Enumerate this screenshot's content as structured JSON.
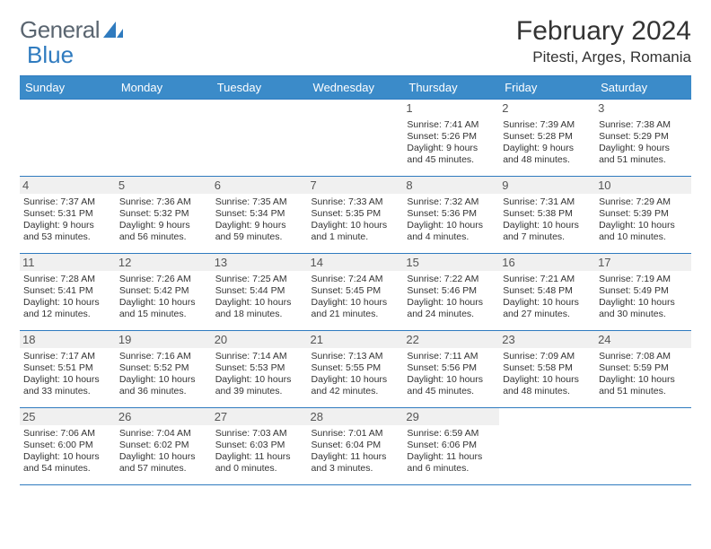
{
  "brand": {
    "part1": "General",
    "part2": "Blue"
  },
  "title": "February 2024",
  "location": "Pitesti, Arges, Romania",
  "colors": {
    "header_bg": "#3b8bc9",
    "border": "#2f7bbf",
    "shade": "#f0f0f0"
  },
  "weekdays": [
    "Sunday",
    "Monday",
    "Tuesday",
    "Wednesday",
    "Thursday",
    "Friday",
    "Saturday"
  ],
  "weeks": [
    [
      {
        "empty": true
      },
      {
        "empty": true
      },
      {
        "empty": true
      },
      {
        "empty": true
      },
      {
        "day": "1",
        "sunrise": "7:41 AM",
        "sunset": "5:26 PM",
        "daylight": "9 hours and 45 minutes."
      },
      {
        "day": "2",
        "sunrise": "7:39 AM",
        "sunset": "5:28 PM",
        "daylight": "9 hours and 48 minutes."
      },
      {
        "day": "3",
        "sunrise": "7:38 AM",
        "sunset": "5:29 PM",
        "daylight": "9 hours and 51 minutes."
      }
    ],
    [
      {
        "day": "4",
        "sunrise": "7:37 AM",
        "sunset": "5:31 PM",
        "daylight": "9 hours and 53 minutes."
      },
      {
        "day": "5",
        "sunrise": "7:36 AM",
        "sunset": "5:32 PM",
        "daylight": "9 hours and 56 minutes."
      },
      {
        "day": "6",
        "sunrise": "7:35 AM",
        "sunset": "5:34 PM",
        "daylight": "9 hours and 59 minutes."
      },
      {
        "day": "7",
        "sunrise": "7:33 AM",
        "sunset": "5:35 PM",
        "daylight": "10 hours and 1 minute."
      },
      {
        "day": "8",
        "sunrise": "7:32 AM",
        "sunset": "5:36 PM",
        "daylight": "10 hours and 4 minutes."
      },
      {
        "day": "9",
        "sunrise": "7:31 AM",
        "sunset": "5:38 PM",
        "daylight": "10 hours and 7 minutes."
      },
      {
        "day": "10",
        "sunrise": "7:29 AM",
        "sunset": "5:39 PM",
        "daylight": "10 hours and 10 minutes."
      }
    ],
    [
      {
        "day": "11",
        "sunrise": "7:28 AM",
        "sunset": "5:41 PM",
        "daylight": "10 hours and 12 minutes."
      },
      {
        "day": "12",
        "sunrise": "7:26 AM",
        "sunset": "5:42 PM",
        "daylight": "10 hours and 15 minutes."
      },
      {
        "day": "13",
        "sunrise": "7:25 AM",
        "sunset": "5:44 PM",
        "daylight": "10 hours and 18 minutes."
      },
      {
        "day": "14",
        "sunrise": "7:24 AM",
        "sunset": "5:45 PM",
        "daylight": "10 hours and 21 minutes."
      },
      {
        "day": "15",
        "sunrise": "7:22 AM",
        "sunset": "5:46 PM",
        "daylight": "10 hours and 24 minutes."
      },
      {
        "day": "16",
        "sunrise": "7:21 AM",
        "sunset": "5:48 PM",
        "daylight": "10 hours and 27 minutes."
      },
      {
        "day": "17",
        "sunrise": "7:19 AM",
        "sunset": "5:49 PM",
        "daylight": "10 hours and 30 minutes."
      }
    ],
    [
      {
        "day": "18",
        "sunrise": "7:17 AM",
        "sunset": "5:51 PM",
        "daylight": "10 hours and 33 minutes."
      },
      {
        "day": "19",
        "sunrise": "7:16 AM",
        "sunset": "5:52 PM",
        "daylight": "10 hours and 36 minutes."
      },
      {
        "day": "20",
        "sunrise": "7:14 AM",
        "sunset": "5:53 PM",
        "daylight": "10 hours and 39 minutes."
      },
      {
        "day": "21",
        "sunrise": "7:13 AM",
        "sunset": "5:55 PM",
        "daylight": "10 hours and 42 minutes."
      },
      {
        "day": "22",
        "sunrise": "7:11 AM",
        "sunset": "5:56 PM",
        "daylight": "10 hours and 45 minutes."
      },
      {
        "day": "23",
        "sunrise": "7:09 AM",
        "sunset": "5:58 PM",
        "daylight": "10 hours and 48 minutes."
      },
      {
        "day": "24",
        "sunrise": "7:08 AM",
        "sunset": "5:59 PM",
        "daylight": "10 hours and 51 minutes."
      }
    ],
    [
      {
        "day": "25",
        "sunrise": "7:06 AM",
        "sunset": "6:00 PM",
        "daylight": "10 hours and 54 minutes."
      },
      {
        "day": "26",
        "sunrise": "7:04 AM",
        "sunset": "6:02 PM",
        "daylight": "10 hours and 57 minutes."
      },
      {
        "day": "27",
        "sunrise": "7:03 AM",
        "sunset": "6:03 PM",
        "daylight": "11 hours and 0 minutes."
      },
      {
        "day": "28",
        "sunrise": "7:01 AM",
        "sunset": "6:04 PM",
        "daylight": "11 hours and 3 minutes."
      },
      {
        "day": "29",
        "sunrise": "6:59 AM",
        "sunset": "6:06 PM",
        "daylight": "11 hours and 6 minutes."
      },
      {
        "empty": true
      },
      {
        "empty": true
      }
    ]
  ]
}
